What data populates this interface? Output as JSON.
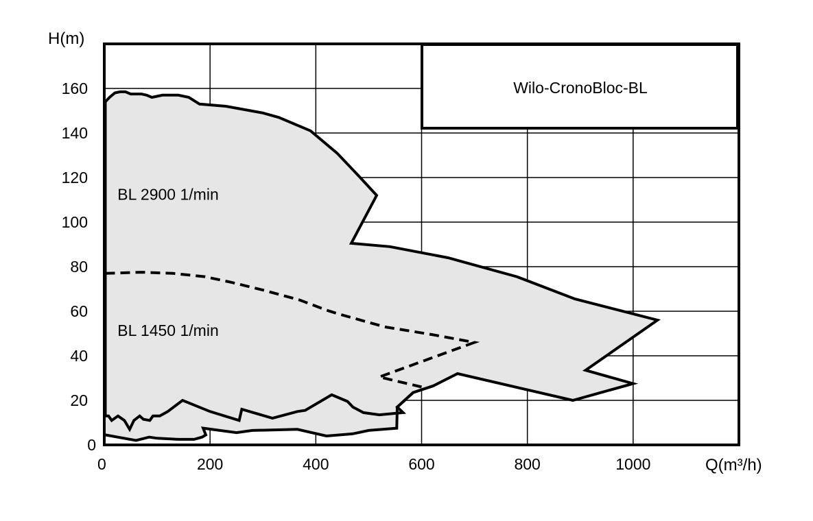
{
  "chart_data": {
    "type": "area",
    "title": "Wilo-CronoBloc-BL",
    "xlabel": "Q(m³/h)",
    "ylabel": "H(m)",
    "xlim": [
      0,
      1200
    ],
    "ylim": [
      0,
      180
    ],
    "x_ticks": [
      0,
      200,
      400,
      600,
      800,
      1000
    ],
    "y_ticks": [
      0,
      20,
      40,
      60,
      80,
      100,
      120,
      140,
      160
    ],
    "grid": true,
    "fill_color": "#e6e6e6",
    "line_color": "#000000",
    "regions": [
      {
        "name": "BL 2900 1/min",
        "label_at": [
          25,
          110
        ],
        "boundary": [
          [
            2,
            154
          ],
          [
            10,
            156
          ],
          [
            20,
            158
          ],
          [
            30,
            158.5
          ],
          [
            40,
            158.5
          ],
          [
            50,
            157.5
          ],
          [
            60,
            157.5
          ],
          [
            70,
            157.5
          ],
          [
            80,
            157
          ],
          [
            90,
            156
          ],
          [
            110,
            157
          ],
          [
            140,
            157
          ],
          [
            160,
            156
          ],
          [
            180,
            153
          ],
          [
            230,
            152
          ],
          [
            300,
            149
          ],
          [
            330,
            147
          ],
          [
            390,
            141
          ],
          [
            440,
            131
          ],
          [
            480,
            121
          ],
          [
            515,
            112
          ],
          [
            467,
            90.5
          ],
          [
            540,
            89
          ],
          [
            650,
            84
          ],
          [
            780,
            75.5
          ],
          [
            890,
            65.5
          ],
          [
            1046,
            56
          ],
          [
            910,
            33.5
          ],
          [
            1000,
            27.5
          ],
          [
            886,
            20
          ],
          [
            668,
            32
          ],
          [
            622,
            26.5
          ],
          [
            584,
            23.5
          ],
          [
            554,
            17
          ],
          [
            565,
            14.5
          ],
          [
            520,
            13.5
          ],
          [
            490,
            14.5
          ],
          [
            470,
            17
          ],
          [
            460,
            19.5
          ],
          [
            430,
            22.5
          ],
          [
            380,
            15.5
          ],
          [
            365,
            15
          ],
          [
            318,
            12
          ],
          [
            260,
            16
          ],
          [
            255,
            11
          ],
          [
            200,
            15
          ],
          [
            148,
            20
          ],
          [
            120,
            15
          ],
          [
            105,
            13
          ],
          [
            92,
            13
          ],
          [
            86,
            11
          ],
          [
            74,
            11.5
          ],
          [
            67,
            13
          ],
          [
            56,
            11
          ],
          [
            48,
            7
          ],
          [
            38,
            11
          ],
          [
            26,
            13
          ],
          [
            14,
            11
          ],
          [
            8,
            13
          ],
          [
            2,
            13
          ]
        ]
      },
      {
        "name": "BL 1450 1/min",
        "label_at": [
          25,
          49
        ],
        "boundary": [
          [
            2,
            77
          ],
          [
            70,
            77.5
          ],
          [
            130,
            77
          ],
          [
            190,
            75.5
          ],
          [
            240,
            73
          ],
          [
            300,
            69.5
          ],
          [
            370,
            65
          ],
          [
            420,
            60.5
          ],
          [
            440,
            59
          ],
          [
            530,
            53
          ],
          [
            620,
            49.5
          ],
          [
            700,
            46
          ],
          [
            520,
            30.5
          ],
          [
            622,
            26.5
          ],
          [
            584,
            23.5
          ],
          [
            554,
            17
          ],
          [
            553,
            7.5
          ],
          [
            500,
            6.5
          ],
          [
            470,
            5
          ],
          [
            420,
            4
          ],
          [
            365,
            7
          ],
          [
            280,
            6.5
          ],
          [
            250,
            5.5
          ],
          [
            187,
            7.5
          ],
          [
            192,
            4.5
          ],
          [
            185,
            3.5
          ],
          [
            170,
            2.5
          ],
          [
            140,
            2.5
          ],
          [
            100,
            3
          ],
          [
            85,
            3.5
          ],
          [
            60,
            2
          ],
          [
            2,
            4.5
          ]
        ]
      }
    ],
    "outline_2900": [
      [
        2,
        154
      ],
      [
        10,
        156
      ],
      [
        20,
        158
      ],
      [
        30,
        158.5
      ],
      [
        40,
        158.5
      ],
      [
        50,
        157.5
      ],
      [
        60,
        157.5
      ],
      [
        70,
        157.5
      ],
      [
        80,
        157
      ],
      [
        90,
        156
      ],
      [
        110,
        157
      ],
      [
        140,
        157
      ],
      [
        160,
        156
      ],
      [
        180,
        153
      ],
      [
        230,
        152
      ],
      [
        300,
        149
      ],
      [
        330,
        147
      ],
      [
        390,
        141
      ],
      [
        440,
        131
      ],
      [
        480,
        121
      ],
      [
        515,
        112
      ],
      [
        467,
        90.5
      ],
      [
        540,
        89
      ],
      [
        650,
        84
      ],
      [
        780,
        75.5
      ],
      [
        890,
        65.5
      ],
      [
        1046,
        56
      ],
      [
        910,
        33.5
      ],
      [
        1000,
        27.5
      ],
      [
        886,
        20
      ],
      [
        668,
        32
      ],
      [
        622,
        26.5
      ],
      [
        584,
        23.5
      ],
      [
        554,
        17
      ],
      [
        565,
        14.5
      ],
      [
        520,
        13.5
      ],
      [
        490,
        14.5
      ],
      [
        470,
        17
      ],
      [
        460,
        19.5
      ],
      [
        430,
        22.5
      ],
      [
        380,
        15.5
      ],
      [
        365,
        15
      ],
      [
        318,
        12
      ],
      [
        260,
        16
      ],
      [
        255,
        11
      ],
      [
        200,
        15
      ],
      [
        148,
        20
      ],
      [
        120,
        15
      ],
      [
        105,
        13
      ],
      [
        92,
        13
      ],
      [
        86,
        11
      ],
      [
        74,
        11.5
      ],
      [
        67,
        13
      ],
      [
        56,
        11
      ],
      [
        48,
        7
      ],
      [
        38,
        11
      ],
      [
        26,
        13
      ],
      [
        14,
        11
      ],
      [
        8,
        13
      ],
      [
        2,
        13
      ]
    ],
    "outline_1450_dashed": [
      [
        2,
        77
      ],
      [
        70,
        77.5
      ],
      [
        130,
        77
      ],
      [
        190,
        75.5
      ],
      [
        240,
        73
      ],
      [
        300,
        69.5
      ],
      [
        370,
        65
      ],
      [
        420,
        60.5
      ],
      [
        440,
        59
      ],
      [
        530,
        53
      ],
      [
        620,
        49.5
      ],
      [
        700,
        46
      ],
      [
        520,
        30.5
      ],
      [
        600,
        26
      ]
    ],
    "outline_1450_solid": [
      [
        622,
        26.5
      ],
      [
        584,
        23.5
      ],
      [
        554,
        17
      ],
      [
        553,
        7.5
      ],
      [
        500,
        6.5
      ],
      [
        470,
        5
      ],
      [
        420,
        4
      ],
      [
        365,
        7
      ],
      [
        280,
        6.5
      ],
      [
        250,
        5.5
      ],
      [
        187,
        7.5
      ],
      [
        192,
        4.5
      ],
      [
        185,
        3.5
      ],
      [
        170,
        2.5
      ],
      [
        140,
        2.5
      ],
      [
        100,
        3
      ],
      [
        85,
        3.5
      ],
      [
        60,
        2
      ],
      [
        2,
        4.5
      ]
    ]
  }
}
